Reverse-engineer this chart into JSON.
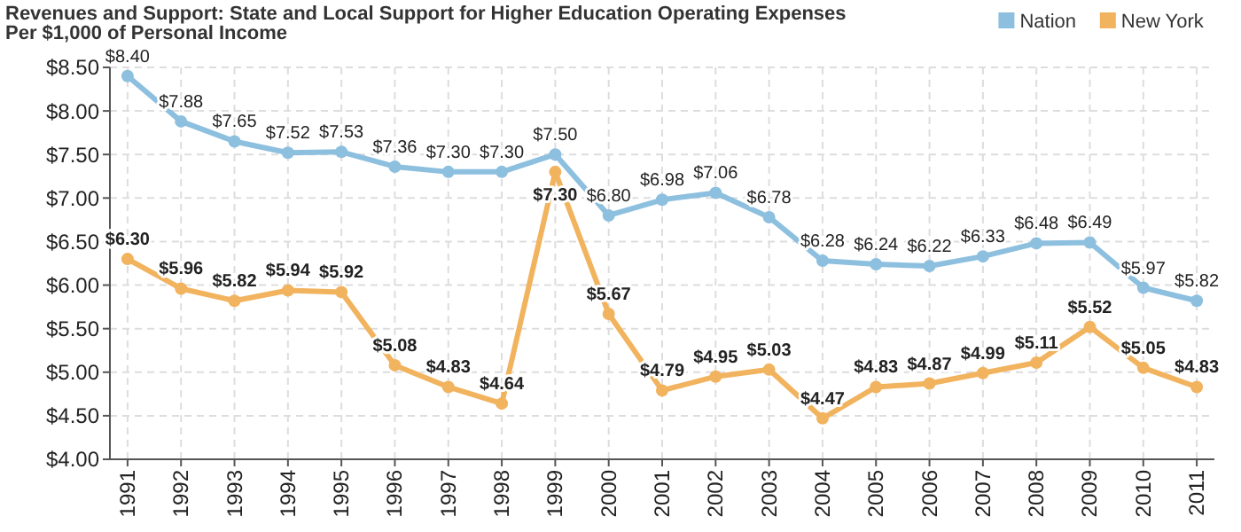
{
  "chart_data": {
    "type": "line",
    "title": "Revenues and Support: State and Local Support for Higher Education Operating Expenses Per $1,000 of Personal Income",
    "categories": [
      "1991",
      "1992",
      "1993",
      "1994",
      "1995",
      "1996",
      "1997",
      "1998",
      "1999",
      "2000",
      "2001",
      "2002",
      "2003",
      "2004",
      "2005",
      "2006",
      "2007",
      "2008",
      "2009",
      "2010",
      "2011"
    ],
    "series": [
      {
        "name": "Nation",
        "color": "#8dbfdf",
        "values": [
          8.4,
          7.88,
          7.65,
          7.52,
          7.53,
          7.36,
          7.3,
          7.3,
          7.5,
          6.8,
          6.98,
          7.06,
          6.78,
          6.28,
          6.24,
          6.22,
          6.33,
          6.48,
          6.49,
          5.97,
          5.82
        ],
        "value_labels": [
          "$8.40",
          "$7.88",
          "$7.65",
          "$7.52",
          "$7.53",
          "$7.36",
          "$7.30",
          "$7.30",
          "$7.50",
          "$6.80",
          "$6.98",
          "$7.06",
          "$6.78",
          "$6.28",
          "$6.24",
          "$6.22",
          "$6.33",
          "$6.48",
          "$6.49",
          "$5.97",
          "$5.82"
        ]
      },
      {
        "name": "New York",
        "color": "#f2b35e",
        "values": [
          6.3,
          5.96,
          5.82,
          5.94,
          5.92,
          5.08,
          4.83,
          4.64,
          7.3,
          5.67,
          4.79,
          4.95,
          5.03,
          4.47,
          4.83,
          4.87,
          4.99,
          5.11,
          5.52,
          5.05,
          4.83
        ],
        "value_labels": [
          "$6.30",
          "$5.96",
          "$5.82",
          "$5.94",
          "$5.92",
          "$5.08",
          "$4.83",
          "$4.64",
          "$7.30",
          "$5.67",
          "$4.79",
          "$4.95",
          "$5.03",
          "$4.47",
          "$4.83",
          "$4.87",
          "$4.99",
          "$5.11",
          "$5.52",
          "$5.05",
          "$4.83"
        ]
      }
    ],
    "ylim": [
      4.0,
      8.5
    ],
    "yticks": [
      {
        "value": 4.0,
        "label": "$4.00"
      },
      {
        "value": 4.5,
        "label": "$4.50"
      },
      {
        "value": 5.0,
        "label": "$5.00"
      },
      {
        "value": 5.5,
        "label": "$5.50"
      },
      {
        "value": 6.0,
        "label": "$6.00"
      },
      {
        "value": 6.5,
        "label": "$6.50"
      },
      {
        "value": 7.0,
        "label": "$7.00"
      },
      {
        "value": 7.5,
        "label": "$7.50"
      },
      {
        "value": 8.0,
        "label": "$8.00"
      },
      {
        "value": 8.5,
        "label": "$8.50"
      }
    ],
    "grid": true,
    "legend": "top right",
    "marker": "circle",
    "line_style": "solid"
  }
}
